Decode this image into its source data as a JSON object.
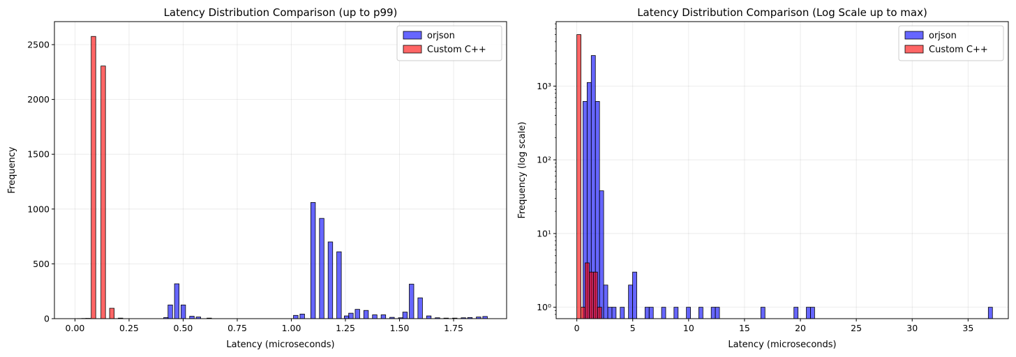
{
  "chart_data": [
    {
      "type": "bar",
      "title": "Latency Distribution Comparison (up to p99)",
      "xlabel": "Latency (microseconds)",
      "ylabel": "Frequency",
      "yscale": "linear",
      "xlim": [
        -0.095,
        1.995
      ],
      "ylim": [
        0,
        2710
      ],
      "x_ticks": [
        0.0,
        0.25,
        0.5,
        0.75,
        1.0,
        1.25,
        1.5,
        1.75
      ],
      "x_tick_labels": [
        "0.00",
        "0.25",
        "0.50",
        "0.75",
        "1.00",
        "1.25",
        "1.50",
        "1.75"
      ],
      "y_ticks": [
        0,
        500,
        1000,
        1500,
        2000,
        2500
      ],
      "y_tick_labels": [
        "0",
        "500",
        "1000",
        "1500",
        "2000",
        "2500"
      ],
      "grid": true,
      "legend_position": "top-right",
      "bin_width": 0.021,
      "series": [
        {
          "name": "orjson",
          "color": "#0000ff",
          "points": [
            [
              0.031,
              2
            ],
            [
              0.41,
              10
            ],
            [
              0.43,
              125
            ],
            [
              0.46,
              318
            ],
            [
              0.49,
              125
            ],
            [
              0.53,
              22
            ],
            [
              0.56,
              15
            ],
            [
              0.61,
              5
            ],
            [
              1.01,
              30
            ],
            [
              1.04,
              42
            ],
            [
              1.09,
              1060
            ],
            [
              1.13,
              915
            ],
            [
              1.17,
              700
            ],
            [
              1.21,
              610
            ],
            [
              1.245,
              25
            ],
            [
              1.265,
              50
            ],
            [
              1.295,
              85
            ],
            [
              1.335,
              75
            ],
            [
              1.375,
              35
            ],
            [
              1.415,
              35
            ],
            [
              1.455,
              12
            ],
            [
              1.495,
              8
            ],
            [
              1.515,
              60
            ],
            [
              1.545,
              315
            ],
            [
              1.585,
              190
            ],
            [
              1.625,
              25
            ],
            [
              1.665,
              8
            ],
            [
              1.705,
              5
            ],
            [
              1.745,
              5
            ],
            [
              1.785,
              8
            ],
            [
              1.815,
              10
            ],
            [
              1.855,
              15
            ],
            [
              1.885,
              20
            ]
          ]
        },
        {
          "name": "Custom C++",
          "color": "#ff0000",
          "points": [
            [
              0.01,
              1
            ],
            [
              0.05,
              3
            ],
            [
              0.075,
              2575
            ],
            [
              0.12,
              2305
            ],
            [
              0.16,
              95
            ],
            [
              0.2,
              5
            ]
          ]
        }
      ]
    },
    {
      "type": "bar",
      "title": "Latency Distribution Comparison (Log Scale up to max)",
      "xlabel": "Latency (microseconds)",
      "ylabel": "Frequency (log scale)",
      "yscale": "log",
      "xlim": [
        -1.85,
        38.6
      ],
      "ylim": [
        0.7,
        7500
      ],
      "x_ticks": [
        0,
        5,
        10,
        15,
        20,
        25,
        30,
        35
      ],
      "x_tick_labels": [
        "0",
        "5",
        "10",
        "15",
        "20",
        "25",
        "30",
        "35"
      ],
      "y_ticks": [
        1,
        10,
        100,
        1000
      ],
      "y_tick_labels": [
        "10⁰",
        "10¹",
        "10²",
        "10³"
      ],
      "grid": true,
      "legend_position": "top-right",
      "bin_width": 0.37,
      "series": [
        {
          "name": "orjson",
          "color": "#0000ff",
          "points": [
            [
              0.55,
              620
            ],
            [
              0.92,
              1120
            ],
            [
              1.29,
              2600
            ],
            [
              1.66,
              620
            ],
            [
              2.03,
              38
            ],
            [
              2.4,
              2
            ],
            [
              2.77,
              1
            ],
            [
              3.14,
              1
            ],
            [
              3.88,
              1
            ],
            [
              4.62,
              2
            ],
            [
              4.99,
              3
            ],
            [
              6.1,
              1
            ],
            [
              6.47,
              1
            ],
            [
              7.58,
              1
            ],
            [
              8.69,
              1
            ],
            [
              9.8,
              1
            ],
            [
              10.91,
              1
            ],
            [
              12.02,
              1
            ],
            [
              12.39,
              1
            ],
            [
              16.46,
              1
            ],
            [
              19.42,
              1
            ],
            [
              20.53,
              1
            ],
            [
              20.9,
              1
            ],
            [
              36.81,
              1
            ]
          ]
        },
        {
          "name": "Custom C++",
          "color": "#ff0000",
          "points": [
            [
              0.0,
              5000
            ],
            [
              0.37,
              1
            ],
            [
              0.74,
              4
            ],
            [
              1.11,
              3
            ],
            [
              1.48,
              3
            ],
            [
              1.85,
              1
            ]
          ]
        }
      ]
    }
  ]
}
